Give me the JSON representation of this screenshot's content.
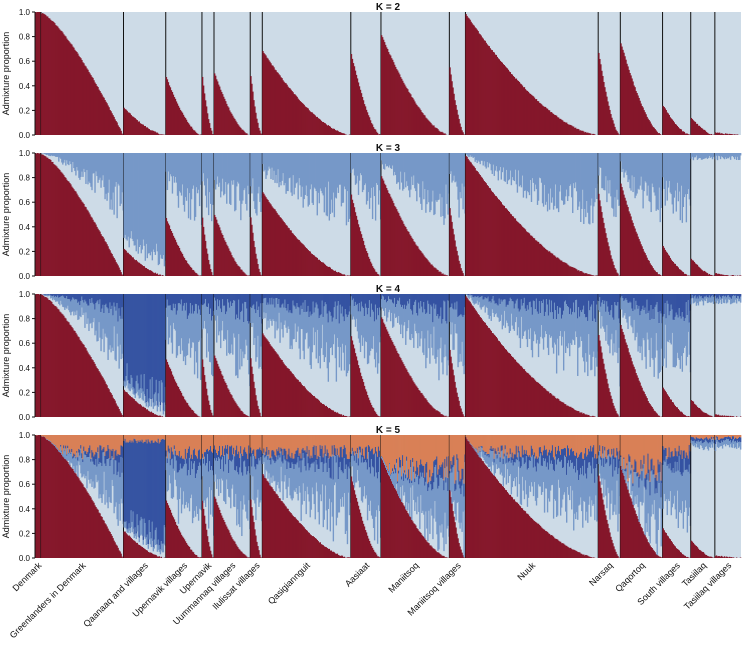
{
  "chart_data": {
    "type": "bar",
    "subtype": "stacked-admixture",
    "ylabel": "Admixture proportion",
    "ylim": [
      0,
      1.0
    ],
    "yticks": [
      0,
      0.2,
      0.4,
      0.6,
      0.8,
      1.0
    ],
    "yticklabels": [
      "0.0",
      "0.2",
      "0.4",
      "0.6",
      "0.8",
      "1.0"
    ],
    "colors": {
      "cluster1": "#85172a",
      "cluster2": "#cddbe7",
      "cluster3": "#7698c8",
      "cluster4": "#3553a2",
      "cluster5": "#d98056",
      "separator": "#111111"
    },
    "populations": [
      {
        "name": "Denmark",
        "n": 6,
        "shape": "flat",
        "p1_max": 1.0
      },
      {
        "name": "Greenlanders in Denmark",
        "n": 82,
        "shape": "convex",
        "p1_max": 0.99
      },
      {
        "name": "Qaanaaq and villages",
        "n": 42,
        "shape": "concave",
        "p1_max": 0.22
      },
      {
        "name": "Upernavik villages",
        "n": 36,
        "shape": "concave",
        "p1_max": 0.47
      },
      {
        "name": "Upernavik",
        "n": 12,
        "shape": "concave",
        "p1_max": 0.47
      },
      {
        "name": "Uummannaq villages",
        "n": 36,
        "shape": "concave",
        "p1_max": 0.5
      },
      {
        "name": "Ilulissat villages",
        "n": 12,
        "shape": "concave",
        "p1_max": 0.48
      },
      {
        "name": "Qasigiannguit",
        "n": 88,
        "shape": "concave",
        "p1_max": 0.68
      },
      {
        "name": "Aasiaat",
        "n": 30,
        "shape": "concave",
        "p1_max": 0.66
      },
      {
        "name": "Maniitsoq",
        "n": 68,
        "shape": "concave",
        "p1_max": 0.81
      },
      {
        "name": "Maniitsoq villages",
        "n": 16,
        "shape": "concave",
        "p1_max": 0.55
      },
      {
        "name": "Nuuk",
        "n": 132,
        "shape": "concave",
        "p1_max": 0.98
      },
      {
        "name": "Narsaq",
        "n": 22,
        "shape": "concave",
        "p1_max": 0.67
      },
      {
        "name": "Qaqortoq",
        "n": 42,
        "shape": "concave",
        "p1_max": 0.75
      },
      {
        "name": "South villages",
        "n": 28,
        "shape": "concave",
        "p1_max": 0.24
      },
      {
        "name": "Tasiilaq",
        "n": 24,
        "shape": "concave",
        "p1_max": 0.14
      },
      {
        "name": "Tasiilaq villages",
        "n": 26,
        "shape": "concave",
        "p1_max": 0.02
      }
    ],
    "panels": [
      {
        "title": "K = 2",
        "k": 2
      },
      {
        "title": "K = 3",
        "k": 3
      },
      {
        "title": "K = 4",
        "k": 4
      },
      {
        "title": "K = 5",
        "k": 5
      }
    ]
  }
}
